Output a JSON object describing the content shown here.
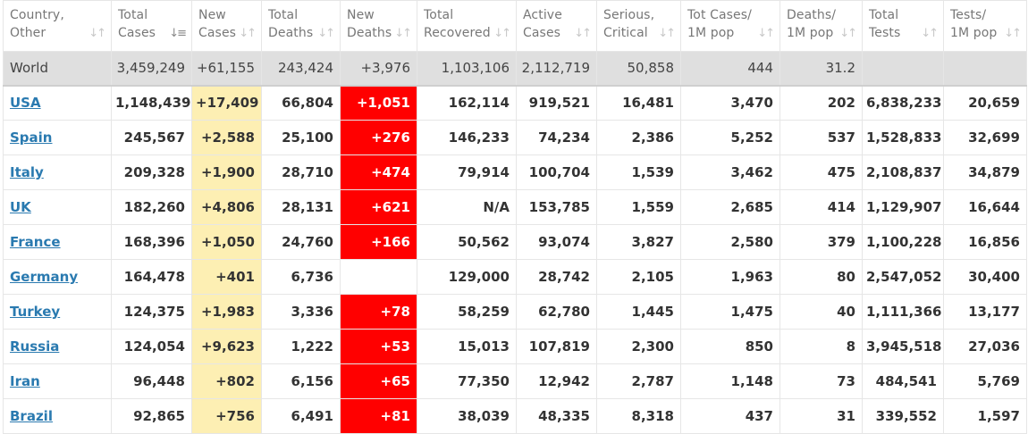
{
  "colors": {
    "new_cases_bg": "#fdefb3",
    "new_deaths_bg": "#ff0000",
    "world_row_bg": "#dfdfdf",
    "country_link": "#2a7ab0"
  },
  "icons": {
    "sort": "up-down-arrows-icon",
    "sort_active": "sort-descending-icon"
  },
  "columns": [
    {
      "l1": "Country,",
      "l2": "Other"
    },
    {
      "l1": "Total",
      "l2": "Cases"
    },
    {
      "l1": "New",
      "l2": "Cases"
    },
    {
      "l1": "Total",
      "l2": "Deaths"
    },
    {
      "l1": "New",
      "l2": "Deaths"
    },
    {
      "l1": "Total",
      "l2": "Recovered"
    },
    {
      "l1": "Active",
      "l2": "Cases"
    },
    {
      "l1": "Serious,",
      "l2": "Critical"
    },
    {
      "l1": "Tot Cases/",
      "l2": "1M pop"
    },
    {
      "l1": "Deaths/",
      "l2": "1M pop"
    },
    {
      "l1": "Total",
      "l2": "Tests"
    },
    {
      "l1": "Tests/",
      "l2": "1M pop"
    }
  ],
  "world": [
    "World",
    "3,459,249",
    "+61,155",
    "243,424",
    "+3,976",
    "1,103,106",
    "2,112,719",
    "50,858",
    "444",
    "31.2",
    "",
    ""
  ],
  "rows": [
    [
      "USA",
      "1,148,439",
      "+17,409",
      "66,804",
      "+1,051",
      "162,114",
      "919,521",
      "16,481",
      "3,470",
      "202",
      "6,838,233",
      "20,659"
    ],
    [
      "Spain",
      "245,567",
      "+2,588",
      "25,100",
      "+276",
      "146,233",
      "74,234",
      "2,386",
      "5,252",
      "537",
      "1,528,833",
      "32,699"
    ],
    [
      "Italy",
      "209,328",
      "+1,900",
      "28,710",
      "+474",
      "79,914",
      "100,704",
      "1,539",
      "3,462",
      "475",
      "2,108,837",
      "34,879"
    ],
    [
      "UK",
      "182,260",
      "+4,806",
      "28,131",
      "+621",
      "N/A",
      "153,785",
      "1,559",
      "2,685",
      "414",
      "1,129,907",
      "16,644"
    ],
    [
      "France",
      "168,396",
      "+1,050",
      "24,760",
      "+166",
      "50,562",
      "93,074",
      "3,827",
      "2,580",
      "379",
      "1,100,228",
      "16,856"
    ],
    [
      "Germany",
      "164,478",
      "+401",
      "6,736",
      "",
      "129,000",
      "28,742",
      "2,105",
      "1,963",
      "80",
      "2,547,052",
      "30,400"
    ],
    [
      "Turkey",
      "124,375",
      "+1,983",
      "3,336",
      "+78",
      "58,259",
      "62,780",
      "1,445",
      "1,475",
      "40",
      "1,111,366",
      "13,177"
    ],
    [
      "Russia",
      "124,054",
      "+9,623",
      "1,222",
      "+53",
      "15,013",
      "107,819",
      "2,300",
      "850",
      "8",
      "3,945,518",
      "27,036"
    ],
    [
      "Iran",
      "96,448",
      "+802",
      "6,156",
      "+65",
      "77,350",
      "12,942",
      "2,787",
      "1,148",
      "73",
      "484,541",
      "5,769"
    ],
    [
      "Brazil",
      "92,865",
      "+756",
      "6,491",
      "+81",
      "38,039",
      "48,335",
      "8,318",
      "437",
      "31",
      "339,552",
      "1,597"
    ]
  ]
}
